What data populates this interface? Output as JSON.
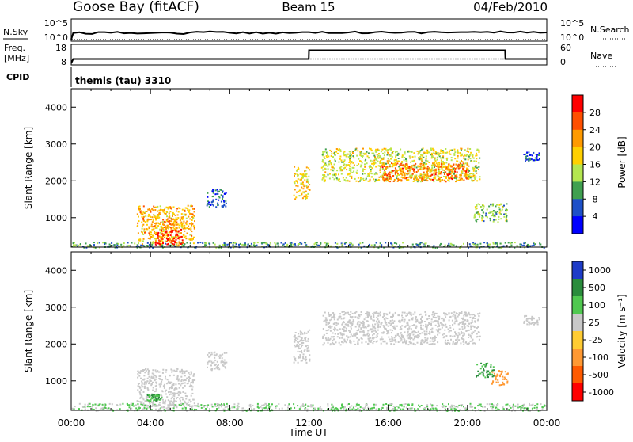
{
  "header": {
    "station": "Goose Bay (fitACF)",
    "beam": "Beam 15",
    "date": "04/Feb/2010"
  },
  "noise_panel": {
    "left_label": "N.Sky",
    "right_label": "N.Search",
    "left_ticks": [
      "10^5",
      "10^0"
    ],
    "right_ticks": [
      "10^5",
      "10^0"
    ]
  },
  "freq_panel": {
    "left_label_line1": "Freq.",
    "left_label_line2": "[MHz]",
    "right_label": "Nave",
    "left_ticks": [
      "18",
      "8"
    ],
    "right_ticks": [
      "60",
      "0"
    ]
  },
  "cpid_panel": {
    "label": "CPID",
    "text": "themis (tau) 3310"
  },
  "x_axis": {
    "label": "Time UT",
    "ticks": [
      "00:00",
      "04:00",
      "08:00",
      "12:00",
      "16:00",
      "20:00",
      "00:00"
    ]
  },
  "power_colorbar": {
    "label": "Power [dB]",
    "ticks": [
      "28",
      "24",
      "20",
      "16",
      "12",
      "8",
      "4"
    ],
    "colors": [
      "#ff0000",
      "#ff4f00",
      "#ff9a00",
      "#ffd000",
      "#b4e650",
      "#40a050",
      "#1e50c8",
      "#0000ff"
    ]
  },
  "velocity_colorbar": {
    "label": "Velocity [m s⁻¹]",
    "ticks": [
      "1000",
      "500",
      "100",
      "25",
      "-25",
      "-100",
      "-500",
      "-1000"
    ],
    "colors": [
      "#1e3cc8",
      "#2a8c3c",
      "#50c850",
      "#c8c8c8",
      "#ffcc33",
      "#ff9933",
      "#ff5a00",
      "#ff0000"
    ]
  },
  "colors": {
    "ground_scatter": "#c8c8c8",
    "axis": "#000000"
  },
  "chart_data": [
    {
      "type": "heatmap",
      "title": "",
      "xlabel": "",
      "ylabel": "Slant Range [km]",
      "xlim": [
        0,
        24
      ],
      "ylim": [
        200,
        4500
      ],
      "yticks": [
        1000,
        2000,
        3000,
        4000
      ],
      "x_unit": "hours UT",
      "value_label": "Power [dB]",
      "regions": [
        {
          "t": [
            0.0,
            24.0
          ],
          "r": [
            200,
            350
          ],
          "value": 10
        },
        {
          "t": [
            3.3,
            6.2
          ],
          "r": [
            300,
            1350
          ],
          "value": 20
        },
        {
          "t": [
            4.2,
            5.6
          ],
          "r": [
            250,
            700
          ],
          "value": 28
        },
        {
          "t": [
            4.5,
            5.3
          ],
          "r": [
            700,
            1000
          ],
          "value": 24
        },
        {
          "t": [
            6.8,
            7.8
          ],
          "r": [
            1300,
            1800
          ],
          "value": 6
        },
        {
          "t": [
            11.2,
            12.0
          ],
          "r": [
            1500,
            2400
          ],
          "value": 18
        },
        {
          "t": [
            12.6,
            20.6
          ],
          "r": [
            2000,
            2900
          ],
          "value": 16
        },
        {
          "t": [
            15.5,
            20.0
          ],
          "r": [
            2000,
            2500
          ],
          "value": 24
        },
        {
          "t": [
            20.3,
            22.0
          ],
          "r": [
            900,
            1400
          ],
          "value": 12
        },
        {
          "t": [
            22.8,
            23.6
          ],
          "r": [
            2550,
            2800
          ],
          "value": 6
        }
      ]
    },
    {
      "type": "heatmap",
      "title": "",
      "xlabel": "Time UT",
      "ylabel": "Slant Range [km]",
      "xlim": [
        0,
        24
      ],
      "ylim": [
        200,
        4500
      ],
      "yticks": [
        1000,
        2000,
        3000,
        4000
      ],
      "x_unit": "hours UT",
      "value_label": "Velocity [m s⁻¹]",
      "regions": [
        {
          "t": [
            0.0,
            24.0
          ],
          "r": [
            200,
            400
          ],
          "value": 60
        },
        {
          "t": [
            3.3,
            6.2
          ],
          "r": [
            300,
            1350
          ],
          "value": 0,
          "ground_scatter": true
        },
        {
          "t": [
            3.8,
            4.6
          ],
          "r": [
            450,
            650
          ],
          "value": 300
        },
        {
          "t": [
            6.8,
            7.8
          ],
          "r": [
            1300,
            1800
          ],
          "value": 0,
          "ground_scatter": true
        },
        {
          "t": [
            11.2,
            12.0
          ],
          "r": [
            1500,
            2400
          ],
          "value": 0,
          "ground_scatter": true
        },
        {
          "t": [
            12.6,
            20.6
          ],
          "r": [
            2000,
            2900
          ],
          "value": 0,
          "ground_scatter": true
        },
        {
          "t": [
            20.4,
            21.3
          ],
          "r": [
            1100,
            1500
          ],
          "value": 300
        },
        {
          "t": [
            21.2,
            22.0
          ],
          "r": [
            900,
            1300
          ],
          "value": -200
        },
        {
          "t": [
            22.8,
            23.6
          ],
          "r": [
            2550,
            2800
          ],
          "value": 0,
          "ground_scatter": true
        }
      ]
    },
    {
      "type": "line",
      "name": "noise",
      "x": [
        0,
        0.1,
        2,
        4,
        6,
        8,
        10,
        12,
        14,
        16,
        18,
        20,
        22,
        24
      ],
      "series": [
        {
          "name": "N.Sky",
          "values": [
            0.3,
            2.3,
            2.4,
            2.3,
            2.5,
            2.4,
            2.4,
            2.6,
            2.5,
            2.5,
            2.6,
            2.6,
            2.5,
            2.5
          ]
        }
      ],
      "ylim": [
        0,
        5
      ],
      "yscale": "log10 exponent"
    },
    {
      "type": "line",
      "name": "frequency",
      "x": [
        0,
        0.1,
        11.99,
        12.0,
        21.9,
        21.91,
        24
      ],
      "series": [
        {
          "name": "Freq. [MHz]",
          "values": [
            8,
            10.5,
            10.5,
            15.5,
            15.5,
            10.5,
            10.5
          ]
        },
        {
          "name": "Nave",
          "values": [
            0,
            15,
            15,
            15,
            15,
            15,
            15
          ]
        }
      ],
      "ylim": [
        8,
        18
      ],
      "nave_lim": [
        0,
        60
      ]
    }
  ]
}
